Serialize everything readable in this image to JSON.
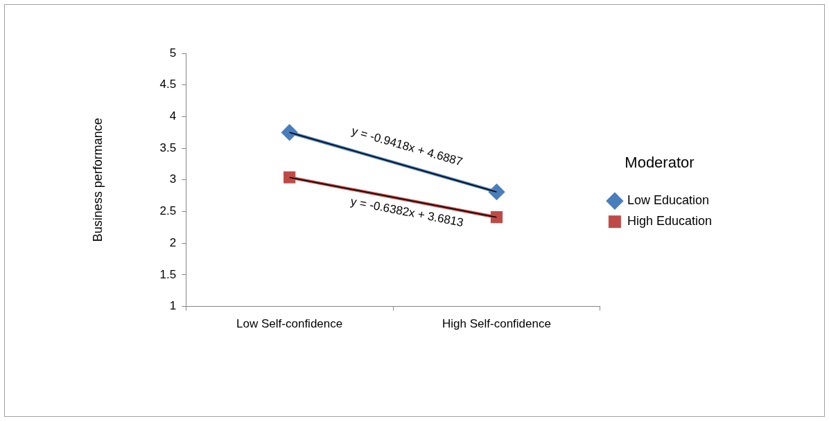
{
  "chart_data": {
    "type": "line",
    "ylabel": "Business performance",
    "legend_title": "Moderator",
    "categories": [
      "Low Self-confidence",
      "High Self-confidence"
    ],
    "series": [
      {
        "name": "Low Education",
        "color": "#4a7ebb",
        "values": [
          3.75,
          2.81
        ],
        "marker": "diamond"
      },
      {
        "name": "High Education",
        "color": "#be4b48",
        "values": [
          3.04,
          2.41
        ],
        "marker": "square"
      },
      {
        "type": "line",
        "color": "#000000",
        "values": [
          3.75,
          2.81
        ],
        "marker": "none"
      },
      {
        "type": "line",
        "color": "#000000",
        "values": [
          3.04,
          2.41
        ],
        "marker": "none"
      }
    ],
    "ylim": [
      1,
      5
    ],
    "yticks": [
      1,
      1.5,
      2,
      2.5,
      3,
      3.5,
      4,
      4.5,
      5
    ],
    "grid": false,
    "legend": "right",
    "annotations": [
      "y = -0.9418x + 4.6887",
      "y = -0.6382x + 3.6813"
    ]
  }
}
